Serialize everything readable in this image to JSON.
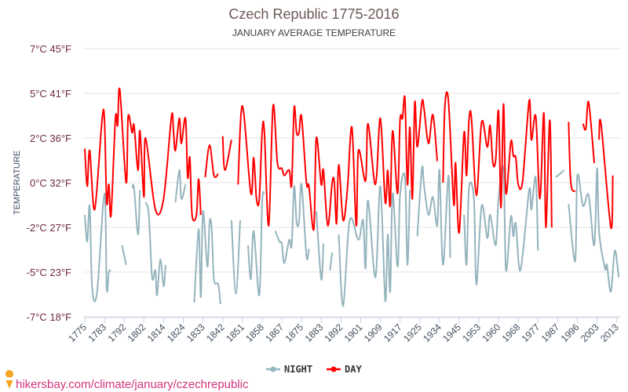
{
  "chart_data": {
    "type": "line",
    "title": "Czech Republic 1775-2016",
    "subtitle": "JANUARY AVERAGE TEMPERATURE",
    "ylabel": "TEMPERATURE",
    "xlabel": "",
    "ylim": [
      -7.5,
      7.5
    ],
    "grid": true,
    "legend_position": "bottom",
    "y_ticks": [
      {
        "value": 7.5,
        "label": "7°C 45°F"
      },
      {
        "value": 5,
        "label": "5°C 41°F"
      },
      {
        "value": 2.5,
        "label": "2°C 36°F"
      },
      {
        "value": 0,
        "label": "0°C 32°F"
      },
      {
        "value": -2.5,
        "label": "-2°C 27°F"
      },
      {
        "value": -5,
        "label": "-5°C 23°F"
      },
      {
        "value": -7.5,
        "label": "-7°C 18°F"
      }
    ],
    "x_ticks": [
      "1775",
      "1783",
      "1792",
      "1802",
      "1814",
      "1824",
      "1833",
      "1842",
      "1851",
      "1858",
      "1867",
      "1875",
      "1883",
      "1892",
      "1901",
      "1909",
      "1917",
      "1925",
      "1934",
      "1945",
      "1953",
      "1960",
      "1968",
      "1977",
      "1987",
      "1996",
      "2003",
      "2013"
    ],
    "series": [
      {
        "name": "NIGHT",
        "color": "#95b4bd",
        "points": [
          [
            1775,
            -1.8
          ],
          [
            1776,
            -3.3
          ],
          [
            1777,
            -1.3
          ],
          [
            1778,
            -5.9
          ],
          [
            1780,
            -6.1
          ],
          [
            1783,
            -0.6
          ],
          [
            1784,
            -5.9
          ],
          [
            1785,
            -5.0
          ],
          [
            1786,
            -4.9
          ],
          null,
          [
            1791,
            -3.5
          ],
          [
            1793,
            -4.6
          ],
          null,
          [
            1796,
            -0.3
          ],
          [
            1797,
            -0.3
          ],
          [
            1799,
            -2.9
          ],
          [
            1800,
            -0.4
          ],
          null,
          [
            1803,
            -1.1
          ],
          [
            1805,
            -1.8
          ],
          [
            1807,
            -5.3
          ],
          [
            1809,
            -4.9
          ],
          [
            1810,
            -6.3
          ],
          [
            1812,
            -4.3
          ],
          [
            1814,
            -5.8
          ],
          [
            1815,
            -4.6
          ],
          null,
          [
            1820,
            -1.1
          ],
          [
            1822,
            0.7
          ],
          [
            1823,
            -0.9
          ],
          [
            1825,
            -0.1
          ],
          null,
          [
            1829,
            -6.7
          ],
          [
            1831,
            -2.6
          ],
          [
            1832,
            -6.4
          ],
          [
            1833,
            -1.6
          ],
          [
            1835,
            -4.7
          ],
          [
            1836,
            -2.2
          ],
          [
            1837,
            -2.6
          ],
          [
            1838,
            -5.4
          ],
          [
            1840,
            -5.7
          ],
          [
            1841,
            -6.8
          ],
          null,
          [
            1846,
            -2.1
          ],
          [
            1848,
            -6.2
          ],
          [
            1850,
            -2.1
          ],
          null,
          [
            1853,
            -3.5
          ],
          [
            1854,
            -5.4
          ],
          [
            1855,
            -2.7
          ],
          [
            1857,
            -6.3
          ],
          [
            1858,
            -1.1
          ],
          [
            1859,
            -0.6
          ],
          null,
          [
            1864,
            -2.7
          ],
          [
            1866,
            -3.3
          ],
          [
            1867,
            -3.4
          ],
          [
            1868,
            -4.5
          ],
          [
            1870,
            -3.2
          ],
          [
            1871,
            -3.5
          ],
          [
            1872,
            -0.2
          ],
          [
            1873,
            -2.2
          ],
          [
            1874,
            -2.2
          ],
          [
            1875,
            -0.1
          ],
          [
            1877,
            -4.1
          ],
          [
            1878,
            -3.7
          ],
          null,
          [
            1881,
            -1.6
          ],
          [
            1883,
            -5.4
          ],
          [
            1884,
            -3.4
          ],
          null,
          [
            1887,
            -4.9
          ],
          [
            1888,
            -3.9
          ],
          null,
          [
            1891,
            -2.9
          ],
          [
            1893,
            -6.9
          ],
          [
            1896,
            -2.1
          ],
          [
            1900,
            -3.2
          ],
          [
            1902,
            -2.1
          ],
          [
            1903,
            -4.8
          ],
          [
            1904,
            -1.0
          ],
          [
            1907,
            -5.3
          ],
          [
            1909,
            -0.2
          ],
          [
            1911,
            -6.6
          ],
          [
            1912,
            -2.9
          ],
          [
            1913,
            -6.1
          ],
          [
            1914,
            -0.6
          ],
          [
            1916,
            -4.7
          ],
          [
            1917,
            -0.7
          ],
          [
            1919,
            0.3
          ],
          [
            1920,
            -4.6
          ],
          [
            1921,
            -0.4
          ],
          null,
          [
            1924,
            -3.0
          ],
          [
            1926,
            0.8
          ],
          [
            1927,
            -0.2
          ],
          [
            1929,
            -1.8
          ],
          [
            1931,
            -0.8
          ],
          [
            1933,
            -2.4
          ],
          [
            1934,
            0.7
          ],
          [
            1936,
            -4.6
          ],
          [
            1939,
            0.4
          ],
          [
            1940,
            -4.2
          ],
          null,
          [
            1947,
            -1.8
          ],
          [
            1948,
            -4.6
          ],
          [
            1949,
            -0.3
          ],
          [
            1951,
            -0.9
          ],
          [
            1952,
            -5.7
          ],
          [
            1954,
            -1.3
          ],
          [
            1956,
            -3.1
          ],
          [
            1957,
            -1.8
          ],
          [
            1959,
            -3.5
          ],
          [
            1960,
            -0.9
          ],
          [
            1962,
            0.8
          ],
          [
            1963,
            -4.9
          ],
          [
            1965,
            -1.9
          ],
          [
            1966,
            -3.0
          ],
          [
            1967,
            -2.3
          ],
          [
            1969,
            -4.9
          ],
          [
            1973,
            -0.4
          ],
          [
            1974,
            -1.5
          ],
          [
            1976,
            0.3
          ],
          [
            1977,
            -3.8
          ],
          null,
          [
            1986,
            0.3
          ],
          [
            1990,
            0.7
          ],
          null,
          [
            1992,
            -1.2
          ],
          [
            1995,
            -4.4
          ],
          [
            1996,
            0.4
          ],
          [
            1998,
            -1.3
          ],
          [
            2000,
            -0.7
          ],
          [
            2002,
            -3.5
          ],
          [
            2003,
            0.8
          ],
          [
            2004,
            -2.7
          ],
          [
            2007,
            -4.8
          ],
          [
            2008,
            -4.6
          ],
          [
            2010,
            -6.1
          ],
          [
            2012,
            -3.8
          ],
          [
            2014,
            -5.3
          ]
        ]
      },
      {
        "name": "DAY",
        "color": "#ff0000",
        "points": [
          [
            1775,
            1.9
          ],
          [
            1776,
            -0.2
          ],
          [
            1777,
            1.8
          ],
          [
            1779,
            -1.5
          ],
          [
            1782,
            3.5
          ],
          [
            1783,
            3.5
          ],
          [
            1784,
            -1.1
          ],
          [
            1785,
            -0.1
          ],
          [
            1786,
            -1.8
          ],
          [
            1788,
            3.6
          ],
          [
            1789,
            3.2
          ],
          [
            1790,
            5.2
          ],
          [
            1793,
            0.0
          ],
          [
            1794,
            3.7
          ],
          [
            1796,
            2.8
          ],
          [
            1797,
            3.2
          ],
          [
            1799,
            0.7
          ],
          [
            1800,
            2.9
          ],
          [
            1802,
            -0.8
          ],
          [
            1803,
            2.5
          ],
          [
            1809,
            -1.5
          ],
          [
            1814,
            -0.9
          ],
          [
            1818,
            3.7
          ],
          [
            1819,
            2.9
          ],
          [
            1820,
            1.8
          ],
          [
            1822,
            3.6
          ],
          [
            1823,
            2.2
          ],
          [
            1825,
            3.6
          ],
          [
            1826,
            0.3
          ],
          [
            1827,
            1.4
          ],
          [
            1828,
            -1.8
          ],
          [
            1830,
            -1.8
          ],
          [
            1831,
            0.2
          ],
          [
            1832,
            -1.8
          ],
          null,
          [
            1834,
            0.3
          ],
          [
            1836,
            2.1
          ],
          [
            1838,
            0.4
          ],
          [
            1840,
            0.5
          ],
          null,
          [
            1842,
            2.6
          ],
          [
            1843,
            0.7
          ],
          [
            1846,
            2.4
          ],
          null,
          [
            1849,
            -0.1
          ],
          [
            1851,
            4.3
          ],
          [
            1854,
            -0.6
          ],
          [
            1855,
            1.4
          ],
          [
            1856,
            -0.9
          ],
          [
            1857,
            -0.9
          ],
          [
            1858,
            2.8
          ],
          [
            1859,
            2.9
          ],
          [
            1861,
            -2.4
          ],
          [
            1863,
            4.3
          ],
          [
            1865,
            1.1
          ],
          [
            1867,
            0.8
          ],
          [
            1868,
            0.4
          ],
          [
            1870,
            0.7
          ],
          [
            1871,
            -0.1
          ],
          [
            1872,
            4.2
          ],
          [
            1873,
            2.8
          ],
          [
            1874,
            2.8
          ],
          [
            1875,
            3.7
          ],
          [
            1877,
            0.0
          ],
          [
            1878,
            -0.2
          ],
          [
            1880,
            -2.6
          ],
          [
            1881,
            2.5
          ],
          [
            1883,
            -0.1
          ],
          [
            1884,
            0.7
          ],
          [
            1886,
            -2.4
          ],
          [
            1888,
            0.0
          ],
          [
            1889,
            0.0
          ],
          [
            1890,
            -2.3
          ],
          [
            1891,
            1.0
          ],
          [
            1893,
            -2.1
          ],
          [
            1895,
            -0.3
          ],
          [
            1897,
            3.1
          ],
          [
            1899,
            -2.4
          ],
          [
            1900,
            1.8
          ],
          [
            1903,
            0.1
          ],
          [
            1904,
            3.3
          ],
          [
            1907,
            -0.1
          ],
          [
            1909,
            3.6
          ],
          [
            1911,
            -1.1
          ],
          [
            1912,
            0.7
          ],
          [
            1913,
            -1.3
          ],
          [
            1914,
            2.9
          ],
          [
            1916,
            -0.6
          ],
          [
            1917,
            3.5
          ],
          [
            1918,
            3.6
          ],
          [
            1919,
            4.7
          ],
          [
            1920,
            -0.1
          ],
          [
            1921,
            3.1
          ],
          [
            1922,
            -0.9
          ],
          [
            1923,
            4.5
          ],
          [
            1924,
            2.0
          ],
          [
            1926,
            4.5
          ],
          [
            1927,
            4.1
          ],
          [
            1929,
            2.2
          ],
          [
            1931,
            3.8
          ],
          [
            1933,
            1.2
          ],
          null,
          [
            1936,
            0.0
          ],
          [
            1937,
            4.2
          ],
          [
            1939,
            4.6
          ],
          [
            1942,
            -1.2
          ],
          [
            1943,
            1.1
          ],
          [
            1945,
            -2.8
          ],
          [
            1947,
            2.8
          ],
          [
            1948,
            0.4
          ],
          [
            1949,
            3.5
          ],
          [
            1950,
            3.6
          ],
          [
            1952,
            -0.7
          ],
          [
            1954,
            3.4
          ],
          [
            1956,
            2.0
          ],
          [
            1957,
            3.2
          ],
          [
            1958,
            1.1
          ],
          [
            1959,
            1.3
          ],
          [
            1960,
            4.0
          ],
          [
            1961,
            -1.4
          ],
          [
            1962,
            4.4
          ],
          [
            1963,
            -0.6
          ],
          [
            1965,
            2.3
          ],
          [
            1966,
            1.5
          ],
          [
            1967,
            1.4
          ],
          [
            1968,
            -0.1
          ],
          [
            1970,
            0.1
          ],
          [
            1973,
            4.6
          ],
          [
            1974,
            2.4
          ],
          [
            1976,
            3.7
          ],
          [
            1978,
            -0.9
          ],
          [
            1980,
            3.9
          ],
          [
            1981,
            -2.5
          ],
          [
            1983,
            3.5
          ],
          [
            1984,
            -2.5
          ],
          null,
          [
            1992,
            3.4
          ],
          [
            1993,
            0.0
          ],
          [
            1995,
            -0.5
          ],
          null,
          [
            1998,
            3.3
          ],
          [
            1999,
            3.0
          ],
          [
            2000,
            4.5
          ],
          [
            2002,
            1.1
          ],
          null,
          [
            2004,
            2.4
          ],
          [
            2005,
            3.3
          ],
          [
            2010,
            -2.5
          ],
          [
            2011,
            0.4
          ]
        ]
      }
    ]
  },
  "legend": {
    "night": "NIGHT",
    "day": "DAY"
  },
  "footer": {
    "link_text": "hikersbay.com/climate/january/czechrepublic",
    "pin_color": "#f5a623"
  }
}
